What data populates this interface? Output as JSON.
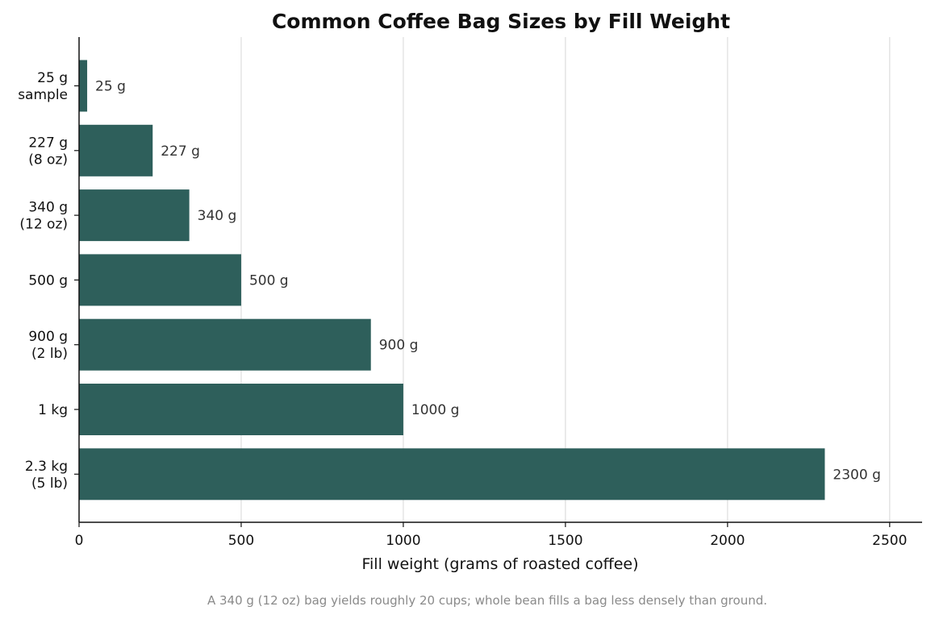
{
  "chart_data": {
    "type": "bar",
    "orientation": "horizontal",
    "title": "Common Coffee Bag Sizes by Fill Weight",
    "xlabel": "Fill weight (grams of roasted coffee)",
    "ylabel": "",
    "categories": [
      [
        "25 g",
        "sample"
      ],
      [
        "227 g",
        "(8 oz)"
      ],
      [
        "340 g",
        "(12 oz)"
      ],
      [
        "500 g"
      ],
      [
        "900 g",
        "(2 lb)"
      ],
      [
        "1 kg"
      ],
      [
        "2.3 kg",
        "(5 lb)"
      ]
    ],
    "values": [
      25,
      227,
      340,
      500,
      900,
      1000,
      2300
    ],
    "value_labels": [
      "25 g",
      "227 g",
      "340 g",
      "500 g",
      "900 g",
      "1000 g",
      "2300 g"
    ],
    "xlim": [
      0,
      2600
    ],
    "xticks": [
      0,
      500,
      1000,
      1500,
      2000,
      2500
    ],
    "xtick_labels": [
      "0",
      "500",
      "1000",
      "1500",
      "2000",
      "2500"
    ],
    "grid": "vertical",
    "bar_color": "#2e5f5b",
    "grid_color": "#dddddd",
    "footnote": "A 340 g (12 oz) bag yields roughly 20 cups; whole bean fills a bag less densely than ground."
  }
}
